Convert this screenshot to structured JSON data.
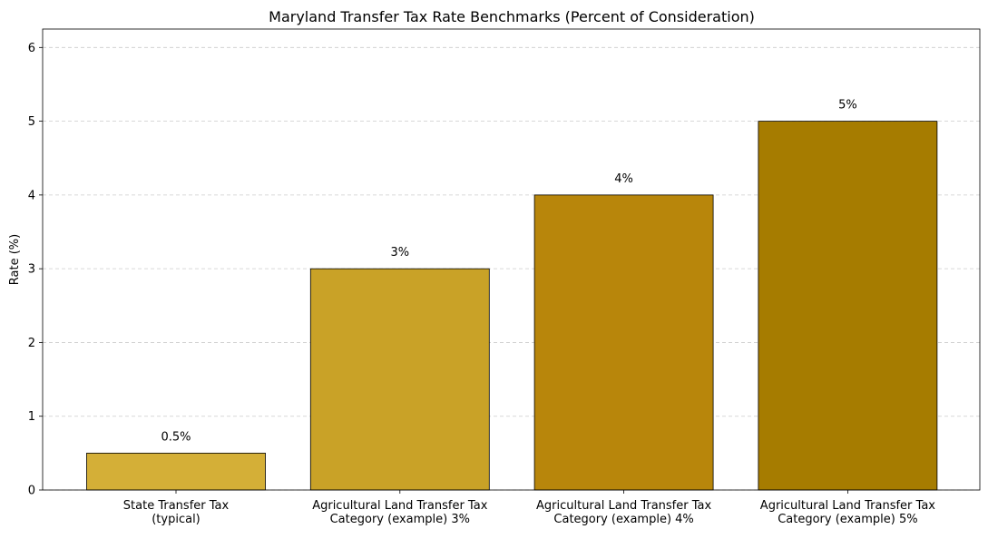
{
  "chart_data": {
    "type": "bar",
    "title": "Maryland Transfer Tax Rate Benchmarks (Percent of Consideration)",
    "xlabel": "",
    "ylabel": "Rate (%)",
    "ylim": [
      0,
      6.25
    ],
    "yticks": [
      0,
      1,
      2,
      3,
      4,
      5,
      6
    ],
    "grid": "y, dashed",
    "categories": [
      [
        "State Transfer Tax",
        "(typical)"
      ],
      [
        "Agricultural Land Transfer Tax",
        "Category (example) 3%"
      ],
      [
        "Agricultural Land Transfer Tax",
        "Category (example) 4%"
      ],
      [
        "Agricultural Land Transfer Tax",
        "Category (example) 5%"
      ]
    ],
    "values": [
      0.5,
      3,
      4,
      5
    ],
    "data_labels": [
      "0.5%",
      "3%",
      "4%",
      "5%"
    ],
    "colors": [
      "#d4af37",
      "#c9a227",
      "#b8860b",
      "#a67c00"
    ]
  }
}
